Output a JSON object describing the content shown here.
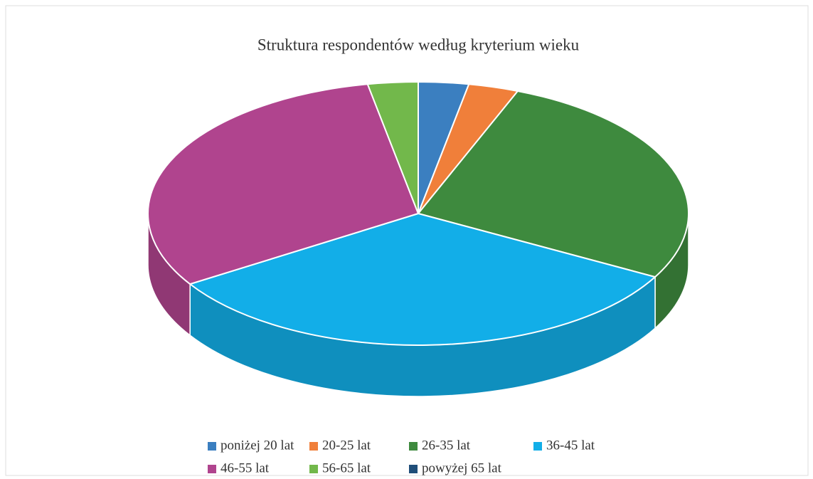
{
  "chart_data": {
    "type": "pie3d",
    "title": "Struktura respondentów według kryterium wieku",
    "categories": [
      "poniżej 20 lat",
      "20-25 lat",
      "26-35 lat",
      "36-45 lat",
      "46-55 lat",
      "56-65 lat",
      "powyżej 65 lat"
    ],
    "values": [
      3,
      3,
      27,
      33,
      31,
      3,
      0
    ],
    "colors": [
      "#3b7fc0",
      "#f07f3a",
      "#3e8a3e",
      "#12aee8",
      "#b0448e",
      "#72b84b",
      "#1f4e79"
    ],
    "legend": "bottom"
  }
}
